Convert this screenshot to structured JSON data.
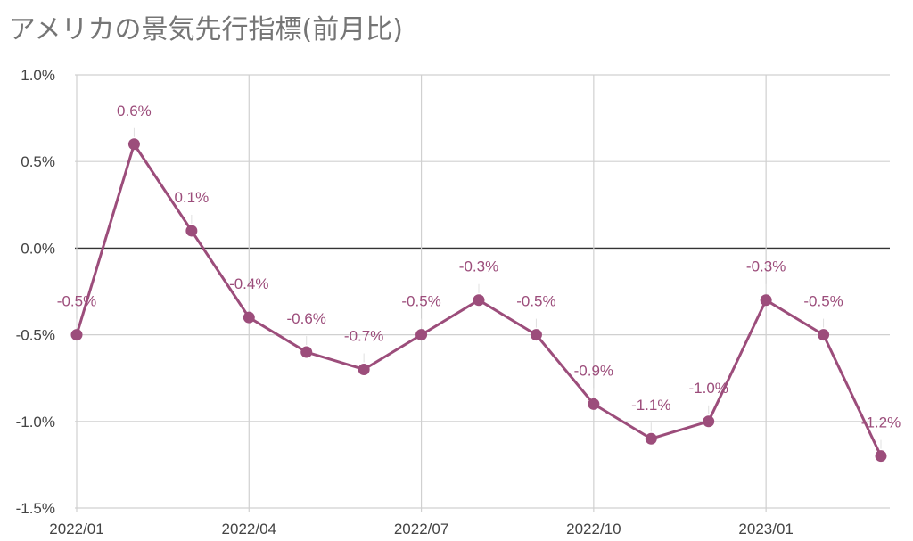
{
  "chart_data": {
    "type": "line",
    "title": "アメリカの景気先行指標(前月比)",
    "xlabel": "",
    "ylabel": "",
    "x": [
      "2022/01",
      "2022/02",
      "2022/03",
      "2022/04",
      "2022/05",
      "2022/06",
      "2022/07",
      "2022/08",
      "2022/09",
      "2022/10",
      "2022/11",
      "2022/12",
      "2023/01",
      "2023/02",
      "2023/03"
    ],
    "x_tick_labels": [
      "2022/01",
      "2022/04",
      "2022/07",
      "2022/10",
      "2023/01"
    ],
    "y_tick_labels": [
      "1.0%",
      "0.5%",
      "0.0%",
      "-0.5%",
      "-1.0%",
      "-1.5%"
    ],
    "y_ticks": [
      1.0,
      0.5,
      0.0,
      -0.5,
      -1.0,
      -1.5
    ],
    "ylim": [
      -1.5,
      1.0
    ],
    "grid": true,
    "legend": "none",
    "series": [
      {
        "values": [
          -0.5,
          0.6,
          0.1,
          -0.4,
          -0.6,
          -0.7,
          -0.5,
          -0.3,
          -0.5,
          -0.9,
          -1.1,
          -1.0,
          -0.3,
          -0.5,
          -1.2
        ],
        "labels": [
          "-0.5%",
          "0.6%",
          "0.1%",
          "-0.4%",
          "-0.6%",
          "-0.7%",
          "-0.5%",
          "-0.3%",
          "-0.5%",
          "-0.9%",
          "-1.1%",
          "-1.0%",
          "-0.3%",
          "-0.5%",
          "-1.2%"
        ],
        "color": "#9c4d7b"
      }
    ],
    "colors": {
      "line": "#9c4d7b",
      "grid": "#d0d0d0",
      "zero_line": "#333333",
      "title": "#757575",
      "tick_text": "#444444",
      "label_text": "#9c4d7b"
    }
  }
}
